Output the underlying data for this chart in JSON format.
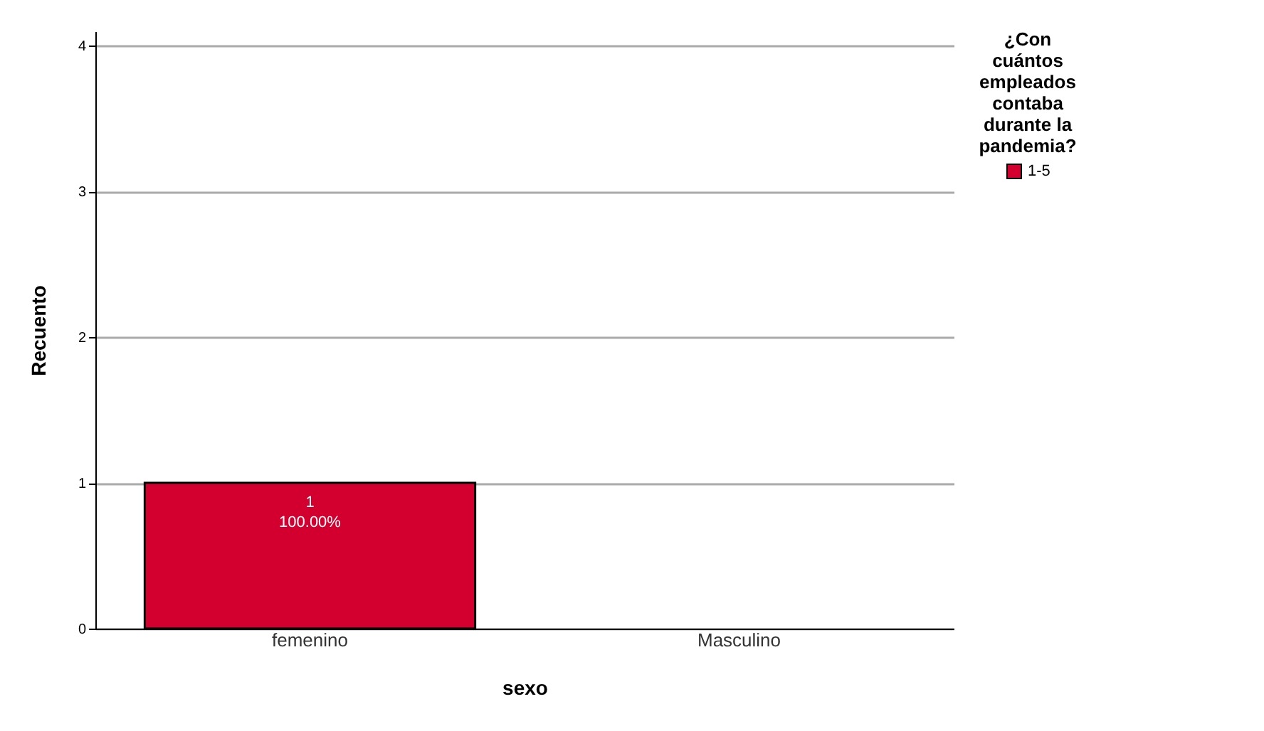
{
  "chart_data": {
    "type": "bar",
    "xlabel": "sexo",
    "ylabel": "Recuento",
    "legend_title": "¿Con cuántos empleados contaba durante la pandemia?",
    "categories": [
      "femenino",
      "Masculino"
    ],
    "series": [
      {
        "name": "1-5",
        "color": "#d3002f",
        "values": [
          1,
          null
        ],
        "value_labels": [
          "1",
          null
        ]
      }
    ],
    "annotations": [
      {
        "text": "100.00%",
        "x": "femenino",
        "y": 1
      }
    ],
    "ylim": [
      0,
      4.1
    ],
    "yticks": [
      0,
      1,
      2,
      3,
      4
    ],
    "grid": "y",
    "legend": "top right"
  }
}
